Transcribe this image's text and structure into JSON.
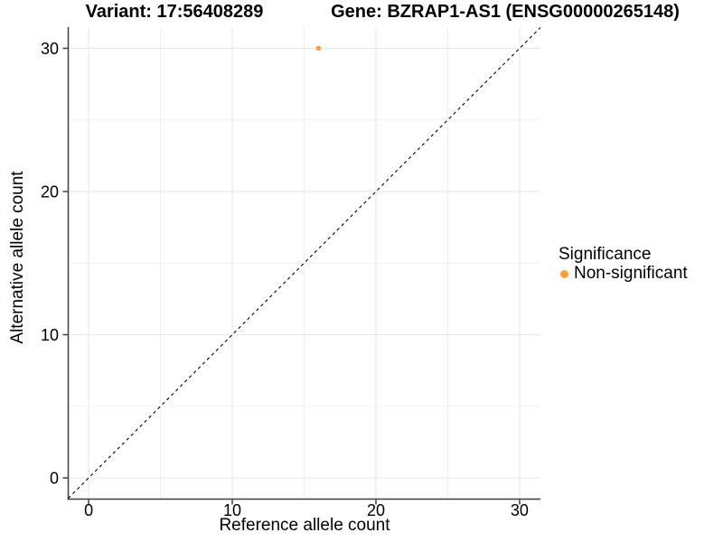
{
  "titles": {
    "variant": "Variant: 17:56408289",
    "gene": "Gene: BZRAP1-AS1 (ENSG00000265148)"
  },
  "chart_data": {
    "type": "scatter",
    "xlabel": "Reference allele count",
    "ylabel": "Alternative allele count",
    "xlim": [
      -1.42,
      31.45
    ],
    "ylim": [
      -1.48,
      31.48
    ],
    "xticks": [
      0,
      10,
      20,
      30
    ],
    "yticks": [
      0,
      10,
      20,
      30
    ],
    "minor_xticks": [
      5,
      15,
      25
    ],
    "minor_yticks": [
      5,
      15,
      25
    ],
    "grid": true,
    "identity_line": {
      "slope": 1,
      "intercept": 0,
      "style": "dashed",
      "color": "#000000"
    },
    "series": [
      {
        "name": "Non-significant",
        "color": "#F9A03F",
        "points": [
          {
            "x": 16,
            "y": 30
          }
        ]
      }
    ],
    "legend": {
      "title": "Significance",
      "position": "right",
      "entries": [
        {
          "label": "Non-significant",
          "color": "#F9A03F",
          "marker": "dot-icon"
        }
      ]
    }
  },
  "colors": {
    "axis_line": "#3f3f3f",
    "tick_mark": "#3f3f3f",
    "grid_major": "#e8e8e8",
    "grid_minor": "#efefef",
    "text": "#000000",
    "background": "#ffffff",
    "point": "#F9A03F"
  }
}
